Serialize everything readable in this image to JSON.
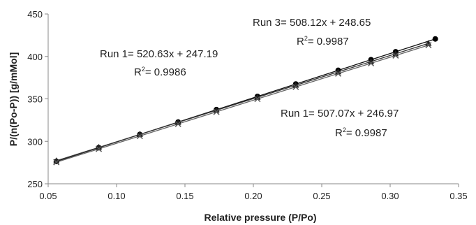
{
  "chart_data": {
    "type": "scatter",
    "xlabel": "Relative pressure (P/Po)",
    "ylabel": "P/(n(Po-P)) [g/mMol]",
    "xlim": [
      0.05,
      0.35
    ],
    "ylim": [
      250,
      450
    ],
    "x_ticks": [
      "0.05",
      "0.10",
      "0.15",
      "0.20",
      "0.25",
      "0.30",
      "0.35"
    ],
    "y_ticks": [
      "250",
      "300",
      "350",
      "400",
      "450"
    ],
    "grid": false,
    "series": [
      {
        "marker": "circle",
        "slope": 520.63,
        "intercept": 247.19,
        "x": [
          0.056,
          0.087,
          0.117,
          0.145,
          0.173,
          0.203,
          0.231,
          0.262,
          0.286,
          0.304,
          0.333
        ],
        "y": [
          276.3,
          292.5,
          308.1,
          322.7,
          337.3,
          352.9,
          367.5,
          383.6,
          396.1,
          405.5,
          420.6
        ]
      },
      {
        "marker": "triangle",
        "slope": 508.12,
        "intercept": 248.65,
        "x": [
          0.056,
          0.087,
          0.117,
          0.145,
          0.173,
          0.203,
          0.231,
          0.262,
          0.286,
          0.304,
          0.328
        ],
        "y": [
          277.1,
          292.9,
          308.1,
          322.3,
          336.6,
          351.8,
          366.0,
          381.8,
          393.9,
          403.1,
          415.3
        ]
      },
      {
        "marker": "x",
        "slope": 507.07,
        "intercept": 246.97,
        "x": [
          0.056,
          0.087,
          0.117,
          0.145,
          0.173,
          0.203,
          0.231,
          0.262,
          0.286,
          0.304,
          0.328
        ],
        "y": [
          275.4,
          291.1,
          306.3,
          320.5,
          334.7,
          349.9,
          364.1,
          379.8,
          392.0,
          401.1,
          413.3
        ]
      }
    ],
    "annotations": [
      {
        "equation": "Run 3= 508.12x + 248.65",
        "r2_label": "R",
        "r2_sup": "2",
        "r2_value": "= 0.9987"
      },
      {
        "equation": "Run 1= 520.63x + 247.19",
        "r2_label": "R",
        "r2_sup": "2",
        "r2_value": "= 0.9986"
      },
      {
        "equation": "Run 1= 507.07x + 246.97",
        "r2_label": "R",
        "r2_sup": "2",
        "r2_value": "= 0.9987"
      }
    ]
  }
}
